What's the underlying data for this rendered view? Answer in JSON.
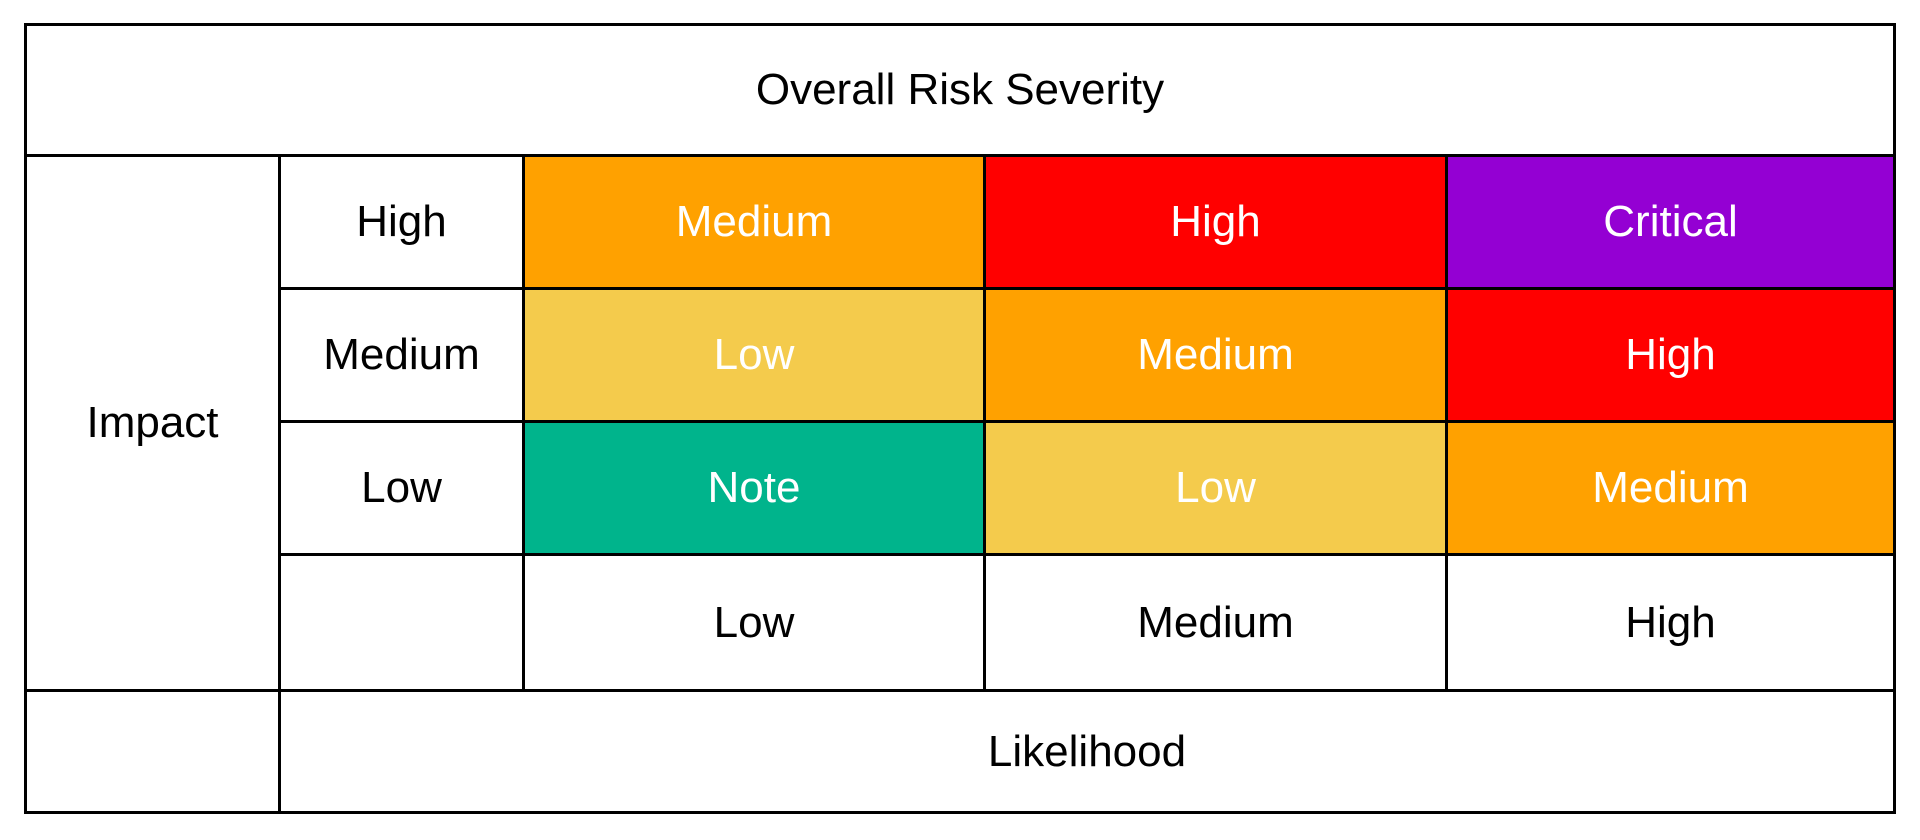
{
  "title": "Overall Risk Severity",
  "y_axis": {
    "label": "Impact",
    "levels": [
      "High",
      "Medium",
      "Low"
    ]
  },
  "x_axis": {
    "label": "Likelihood",
    "levels": [
      "Low",
      "Medium",
      "High"
    ]
  },
  "colors": {
    "Note": "#00b48c",
    "Low": "#f4cb4c",
    "Medium": "#ffa100",
    "High": "#ff0000",
    "Critical": "#9400d3"
  },
  "matrix": [
    [
      "Medium",
      "High",
      "Critical"
    ],
    [
      "Low",
      "Medium",
      "High"
    ],
    [
      "Note",
      "Low",
      "Medium"
    ]
  ]
}
